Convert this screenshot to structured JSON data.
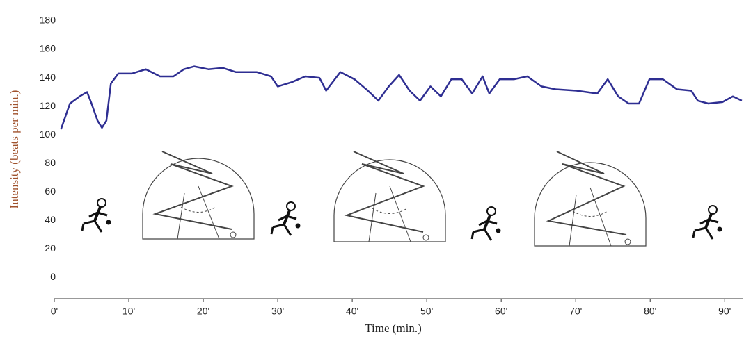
{
  "chart_data": {
    "type": "line",
    "y_label": "Intensity (beats per min.)",
    "x_label": "Time (min.)",
    "x": [
      0.9,
      2.1,
      3.4,
      4.4,
      5.0,
      5.8,
      6.4,
      7.0,
      7.6,
      8.6,
      10.4,
      12.3,
      14.2,
      16.0,
      17.4,
      18.8,
      20.7,
      22.6,
      24.4,
      27.2,
      29.1,
      30.0,
      31.9,
      33.7,
      35.6,
      36.5,
      38.4,
      40.3,
      42.1,
      43.5,
      44.9,
      46.3,
      47.7,
      49.1,
      50.5,
      51.9,
      53.3,
      54.7,
      56.1,
      57.5,
      58.4,
      59.8,
      61.7,
      63.5,
      65.4,
      67.3,
      70.1,
      72.9,
      74.3,
      75.7,
      77.1,
      78.5,
      79.9,
      81.7,
      83.6,
      85.5,
      86.4,
      87.8,
      89.7,
      91.1,
      92.3
    ],
    "series": [
      {
        "color": "#2e2e92",
        "values": [
          104,
          122,
          127,
          130,
          122,
          110,
          105,
          110,
          136,
          143,
          143,
          146,
          141,
          141,
          146,
          148,
          146,
          147,
          144,
          144,
          141,
          134,
          137,
          141,
          140,
          131,
          144,
          139,
          131,
          124,
          134,
          142,
          131,
          124,
          134,
          127,
          139,
          139,
          129,
          141,
          129,
          139,
          139,
          141,
          134,
          132,
          131,
          129,
          139,
          127,
          122,
          122,
          139,
          139,
          132,
          131,
          124,
          122,
          123,
          127,
          124
        ]
      }
    ],
    "xlim": [
      0,
      92.5
    ],
    "xticks": [
      {
        "value": 0,
        "label": "0'"
      },
      {
        "value": 10,
        "label": "10'"
      },
      {
        "value": 20,
        "label": "20'"
      },
      {
        "value": 30,
        "label": "30'"
      },
      {
        "value": 40,
        "label": "40'"
      },
      {
        "value": 50,
        "label": "50'"
      },
      {
        "value": 60,
        "label": "60'"
      },
      {
        "value": 70,
        "label": "70'"
      },
      {
        "value": 80,
        "label": "80'"
      },
      {
        "value": 90,
        "label": "90'"
      }
    ],
    "ylim": [
      -15,
      180
    ],
    "yticks": [
      0,
      20,
      40,
      60,
      80,
      100,
      120,
      140,
      160,
      180
    ],
    "grid": false
  }
}
